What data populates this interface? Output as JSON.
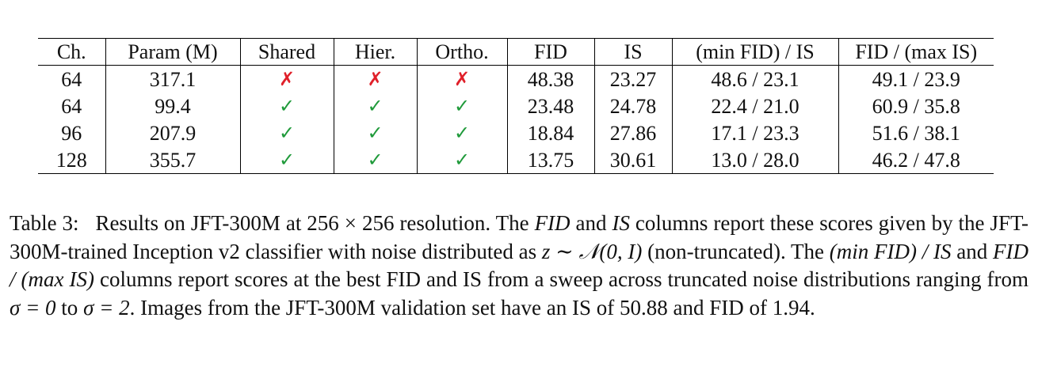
{
  "table": {
    "headers": [
      "Ch.",
      "Param (M)",
      "Shared",
      "Hier.",
      "Ortho.",
      "FID",
      "IS",
      "(min FID) / IS",
      "FID / (max IS)"
    ],
    "rows": [
      {
        "ch": "64",
        "param": "317.1",
        "shared": "✗",
        "hier": "✗",
        "ortho": "✗",
        "fid": "48.38",
        "is": "23.27",
        "min_fid_is": "48.6 / 23.1",
        "fid_max_is": "49.1 / 23.9"
      },
      {
        "ch": "64",
        "param": "99.4",
        "shared": "✓",
        "hier": "✓",
        "ortho": "✓",
        "fid": "23.48",
        "is": "24.78",
        "min_fid_is": "22.4 / 21.0",
        "fid_max_is": "60.9 / 35.8"
      },
      {
        "ch": "96",
        "param": "207.9",
        "shared": "✓",
        "hier": "✓",
        "ortho": "✓",
        "fid": "18.84",
        "is": "27.86",
        "min_fid_is": "17.1 / 23.3",
        "fid_max_is": "51.6 / 38.1"
      },
      {
        "ch": "128",
        "param": "355.7",
        "shared": "✓",
        "hier": "✓",
        "ortho": "✓",
        "fid": "13.75",
        "is": "30.61",
        "min_fid_is": "13.0 / 28.0",
        "fid_max_is": "46.2 / 47.8"
      }
    ],
    "colors": {
      "check": "#1f9a3a",
      "cross": "#e0202a"
    }
  },
  "caption": {
    "label": "Table 3:",
    "t1": "Results on JFT-300M at 256 × 256 resolution. The ",
    "fid_label": "FID",
    "t2": " and ",
    "is_label": "IS",
    "t3": " columns report these scores given by the JFT-300M-trained Inception v2 classifier with noise distributed as ",
    "math1": "z ∼ 𝒩(0, I)",
    "t4": " (non-truncated). The ",
    "min_fid_label": "(min FID) / IS",
    "t5": " and ",
    "max_is_label": "FID / (max IS)",
    "t6": " columns report scores at the best FID and IS from a sweep across truncated noise distributions ranging from ",
    "math2": "σ = 0",
    "t7": " to ",
    "math3": "σ = 2",
    "t8": ". Images from the JFT-300M validation set have an IS of 50.88 and FID of 1.94."
  }
}
